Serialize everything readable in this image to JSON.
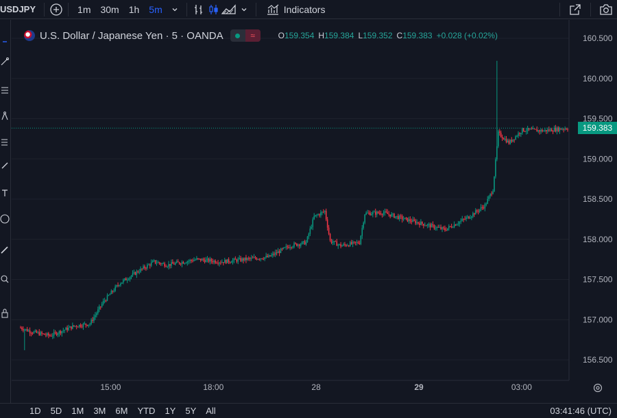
{
  "toolbar": {
    "symbol": "USDJPY",
    "intervals": [
      "1m",
      "30m",
      "1h",
      "5m"
    ],
    "active_interval": "5m",
    "indicators_label": "Indicators"
  },
  "legend": {
    "title": "U.S. Dollar / Japanese Yen · 5 · OANDA",
    "open_label": "O",
    "open": "159.354",
    "high_label": "H",
    "high": "159.384",
    "low_label": "L",
    "low": "159.352",
    "close_label": "C",
    "close": "159.383",
    "change": "+0.028 (+0.02%)"
  },
  "last_price": "159.383",
  "bottom": {
    "ranges": [
      "1D",
      "5D",
      "1M",
      "3M",
      "6M",
      "YTD",
      "1Y",
      "5Y",
      "All"
    ],
    "clock": "03:41:46 (UTC)"
  },
  "colors": {
    "background": "#131722",
    "up": "#089981",
    "down": "#f23645",
    "accent": "#2962ff",
    "grid": "#1e222d"
  },
  "chart_data": {
    "type": "candlestick",
    "symbol": "USDJPY",
    "ylim": [
      156.4,
      160.6
    ],
    "y_ticks": [
      156.5,
      157.0,
      157.5,
      158.0,
      158.5,
      159.0,
      159.5,
      160.0,
      160.5
    ],
    "y_tick_labels": [
      "156.500",
      "157.000",
      "157.500",
      "158.000",
      "158.500",
      "159.000",
      "159.500",
      "160.000",
      "160.500"
    ],
    "x_tick_labels": [
      "15:00",
      "18:00",
      "28",
      "29",
      "03:00"
    ],
    "close_path": [
      [
        0,
        156.9
      ],
      [
        8,
        156.85
      ],
      [
        22,
        156.8
      ],
      [
        40,
        156.92
      ],
      [
        52,
        156.95
      ],
      [
        62,
        157.22
      ],
      [
        74,
        157.45
      ],
      [
        88,
        157.6
      ],
      [
        100,
        157.72
      ],
      [
        110,
        157.68
      ],
      [
        132,
        157.75
      ],
      [
        150,
        157.72
      ],
      [
        168,
        157.75
      ],
      [
        186,
        157.78
      ],
      [
        202,
        157.92
      ],
      [
        214,
        157.96
      ],
      [
        220,
        158.28
      ],
      [
        228,
        158.35
      ],
      [
        232,
        157.98
      ],
      [
        240,
        157.92
      ],
      [
        254,
        157.96
      ],
      [
        258,
        158.32
      ],
      [
        272,
        158.33
      ],
      [
        288,
        158.25
      ],
      [
        304,
        158.18
      ],
      [
        318,
        158.12
      ],
      [
        336,
        158.28
      ],
      [
        348,
        158.42
      ],
      [
        354,
        158.62
      ],
      [
        358,
        159.32
      ],
      [
        366,
        159.2
      ],
      [
        376,
        159.36
      ],
      [
        392,
        159.35
      ],
      [
        410,
        159.383
      ]
    ],
    "spike": {
      "index": 357,
      "high": 160.22
    }
  }
}
